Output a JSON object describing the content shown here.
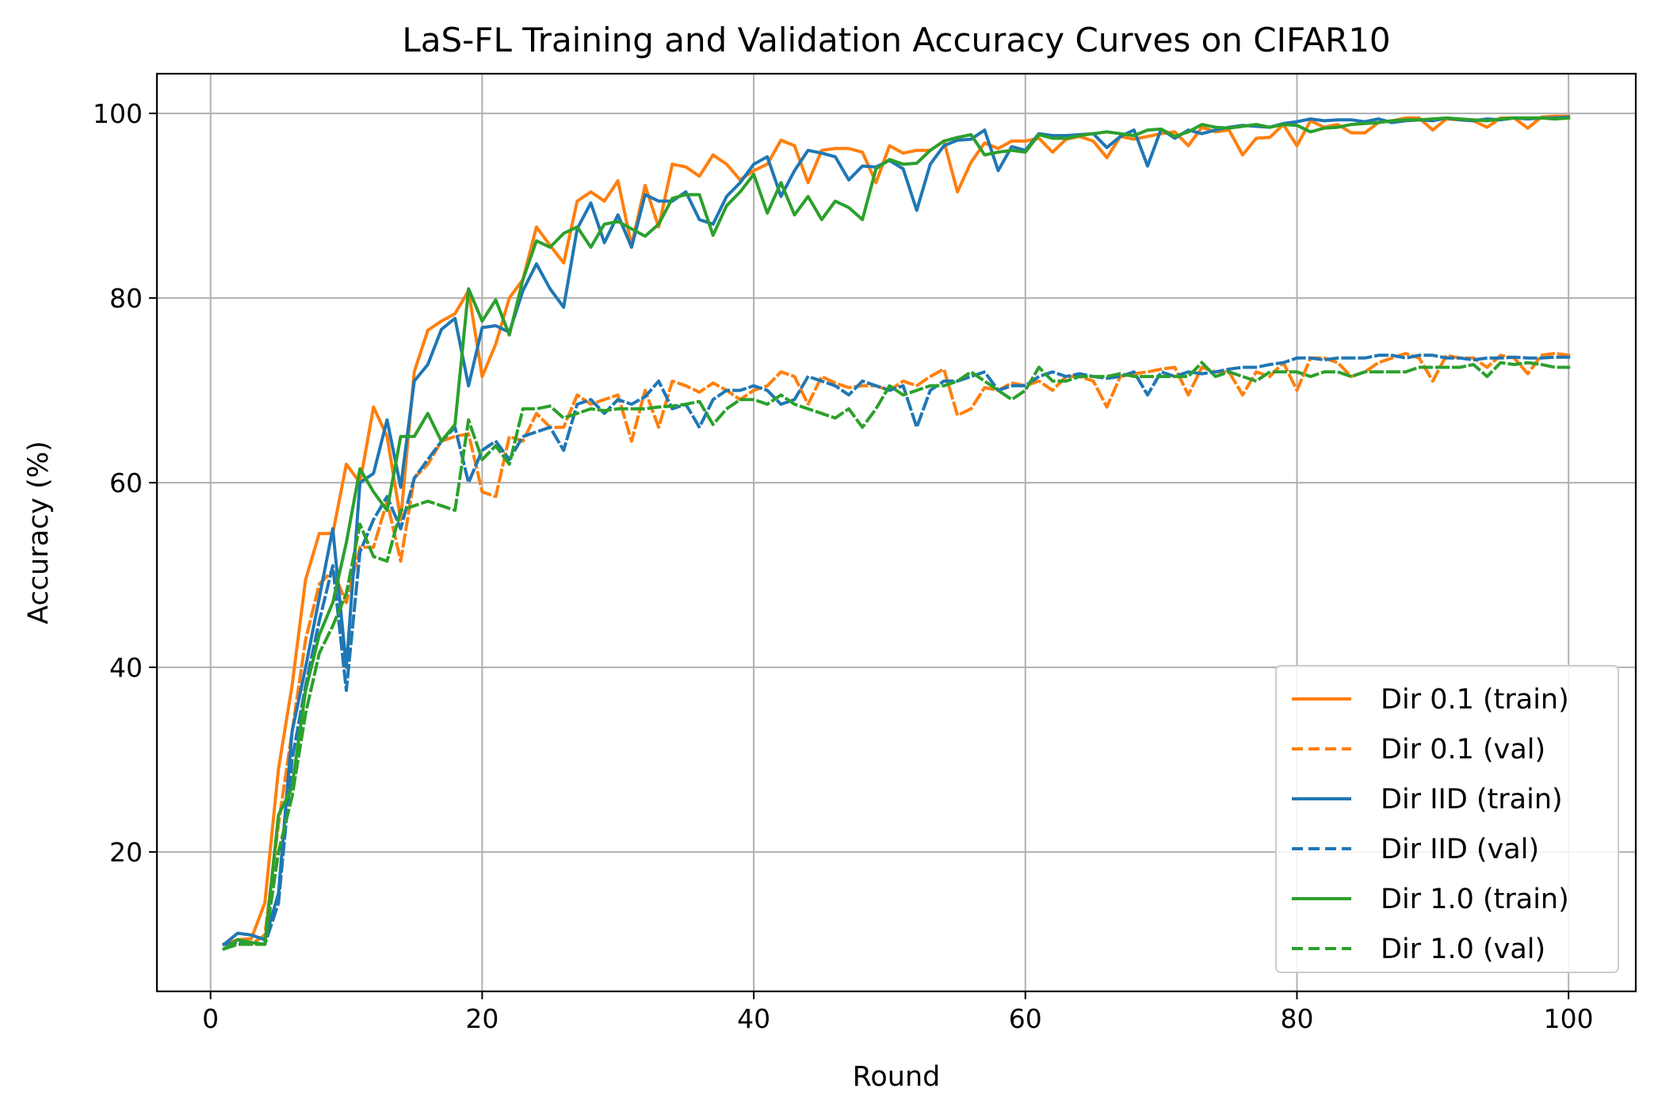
{
  "chart_data": {
    "type": "line",
    "title": "LaS-FL Training and Validation Accuracy Curves on CIFAR10",
    "xlabel": "Round",
    "ylabel": "Accuracy (%)",
    "xlim": [
      -3.95,
      104.95
    ],
    "ylim": [
      4.9,
      104.3
    ],
    "xticks": [
      0,
      20,
      40,
      60,
      80,
      100
    ],
    "yticks": [
      20,
      40,
      60,
      80,
      100
    ],
    "grid": true,
    "legend_position": "lower-right",
    "x": [
      1,
      2,
      3,
      4,
      5,
      6,
      7,
      8,
      9,
      10,
      11,
      12,
      13,
      14,
      15,
      16,
      17,
      18,
      19,
      20,
      21,
      22,
      23,
      24,
      25,
      26,
      27,
      28,
      29,
      30,
      31,
      32,
      33,
      34,
      35,
      36,
      37,
      38,
      39,
      40,
      41,
      42,
      43,
      44,
      45,
      46,
      47,
      48,
      49,
      50,
      51,
      52,
      53,
      54,
      55,
      56,
      57,
      58,
      59,
      60,
      61,
      62,
      63,
      64,
      65,
      66,
      67,
      68,
      69,
      70,
      71,
      72,
      73,
      74,
      75,
      76,
      77,
      78,
      79,
      80,
      81,
      82,
      83,
      84,
      85,
      86,
      87,
      88,
      89,
      90,
      91,
      92,
      93,
      94,
      95,
      96,
      97,
      98,
      99,
      100
    ],
    "series": [
      {
        "name": "Dir 0.1 (train)",
        "color": "#ff7f0e",
        "dash": "solid",
        "values": [
          10.0,
          10.5,
          10.6,
          14.5,
          29.0,
          38.0,
          49.5,
          54.5,
          54.5,
          62.0,
          60.0,
          68.2,
          65.0,
          56.0,
          72.0,
          76.5,
          77.5,
          78.3,
          80.8,
          71.5,
          75.0,
          80.0,
          82.0,
          87.7,
          85.7,
          83.8,
          90.5,
          91.5,
          90.5,
          92.7,
          85.7,
          92.2,
          87.7,
          94.5,
          94.2,
          93.2,
          95.5,
          94.5,
          92.8,
          93.8,
          94.5,
          97.1,
          96.5,
          92.5,
          96.0,
          96.2,
          96.2,
          95.8,
          92.5,
          96.5,
          95.7,
          96.0,
          96.0,
          97.0,
          91.5,
          94.7,
          96.8,
          96.2,
          97.0,
          97.0,
          97.3,
          95.8,
          97.2,
          97.5,
          97.0,
          95.2,
          97.5,
          97.2,
          97.5,
          97.8,
          98.0,
          96.5,
          98.5,
          98.0,
          98.2,
          95.5,
          97.3,
          97.4,
          98.8,
          96.5,
          99.2,
          98.5,
          98.8,
          97.9,
          97.9,
          99.0,
          99.2,
          99.5,
          99.5,
          98.2,
          99.4,
          99.3,
          99.2,
          98.5,
          99.5,
          99.5,
          98.4,
          99.6,
          99.7,
          99.7
        ]
      },
      {
        "name": "Dir 0.1 (val)",
        "color": "#ff7f0e",
        "dash": "dashed",
        "values": [
          10.0,
          10.2,
          10.0,
          11.0,
          23.0,
          33.0,
          43.0,
          49.0,
          50.5,
          47.0,
          53.0,
          53.0,
          58.0,
          51.5,
          60.5,
          62.0,
          64.5,
          65.0,
          65.3,
          59.0,
          58.5,
          65.0,
          64.5,
          67.5,
          66.0,
          66.0,
          69.5,
          68.5,
          69.0,
          69.5,
          64.5,
          70.0,
          66.0,
          71.0,
          70.5,
          69.8,
          70.8,
          70.0,
          69.0,
          70.0,
          70.5,
          72.0,
          71.5,
          68.5,
          71.5,
          70.8,
          70.3,
          70.5,
          70.5,
          70.0,
          71.0,
          70.5,
          71.5,
          72.3,
          67.3,
          68.0,
          70.3,
          70.0,
          70.8,
          70.5,
          71.0,
          70.0,
          71.5,
          71.5,
          71.0,
          68.2,
          71.5,
          71.8,
          72.0,
          72.3,
          72.5,
          69.5,
          72.5,
          72.0,
          72.0,
          69.5,
          72.0,
          71.5,
          73.0,
          70.0,
          73.5,
          73.5,
          73.0,
          71.5,
          72.0,
          73.0,
          73.5,
          74.0,
          73.5,
          71.0,
          73.8,
          73.5,
          73.5,
          72.5,
          73.8,
          73.5,
          71.8,
          73.8,
          74.0,
          73.8
        ]
      },
      {
        "name": "Dir IID (train)",
        "color": "#1f77b4",
        "dash": "solid",
        "values": [
          10.0,
          11.2,
          11.0,
          10.5,
          15.5,
          33.0,
          40.0,
          47.5,
          55.0,
          40.0,
          60.0,
          61.0,
          66.8,
          59.5,
          71.0,
          72.8,
          76.6,
          77.8,
          70.5,
          76.8,
          77.0,
          76.3,
          80.8,
          83.7,
          81.0,
          79.0,
          87.5,
          90.3,
          86.0,
          89.0,
          85.5,
          91.2,
          90.5,
          90.5,
          91.5,
          88.5,
          88.0,
          91.0,
          92.5,
          94.5,
          95.3,
          91.0,
          93.8,
          96.0,
          95.7,
          95.3,
          92.8,
          94.3,
          94.2,
          94.9,
          94.0,
          89.5,
          94.5,
          96.5,
          97.1,
          97.2,
          98.2,
          93.8,
          96.4,
          96.0,
          97.8,
          97.6,
          97.6,
          97.7,
          97.8,
          96.3,
          97.5,
          98.2,
          94.3,
          98.3,
          97.3,
          98.2,
          97.8,
          98.2,
          98.5,
          98.7,
          98.6,
          98.5,
          98.9,
          99.1,
          99.4,
          99.2,
          99.3,
          99.3,
          99.1,
          99.4,
          99.0,
          99.2,
          99.3,
          99.2,
          99.5,
          99.3,
          99.2,
          99.4,
          99.3,
          99.5,
          99.4,
          99.5,
          99.5,
          99.6
        ]
      },
      {
        "name": "Dir IID (val)",
        "color": "#1f77b4",
        "dash": "dashed",
        "values": [
          10.0,
          10.2,
          10.2,
          10.0,
          14.5,
          30.0,
          38.0,
          45.0,
          51.0,
          37.5,
          52.5,
          56.0,
          58.5,
          55.0,
          60.5,
          62.5,
          64.5,
          66.0,
          60.0,
          63.5,
          64.5,
          62.5,
          65.0,
          65.5,
          66.0,
          63.5,
          68.5,
          69.0,
          67.5,
          69.0,
          68.5,
          69.3,
          71.0,
          68.0,
          68.5,
          66.0,
          69.0,
          70.0,
          70.0,
          70.5,
          70.0,
          68.5,
          69.0,
          71.5,
          71.0,
          70.5,
          69.5,
          71.0,
          70.5,
          70.0,
          70.5,
          66.0,
          70.0,
          71.0,
          71.0,
          71.5,
          72.0,
          70.0,
          70.5,
          70.5,
          71.5,
          72.0,
          71.5,
          71.8,
          71.5,
          71.3,
          71.5,
          72.0,
          69.5,
          72.0,
          71.5,
          72.0,
          71.8,
          72.0,
          72.3,
          72.5,
          72.5,
          72.8,
          73.0,
          73.5,
          73.5,
          73.3,
          73.5,
          73.5,
          73.5,
          73.8,
          73.8,
          73.5,
          73.8,
          73.8,
          73.5,
          73.5,
          73.3,
          73.5,
          73.5,
          73.6,
          73.5,
          73.5,
          73.6,
          73.6
        ]
      },
      {
        "name": "Dir 1.0 (train)",
        "color": "#2ca02c",
        "dash": "solid",
        "values": [
          9.5,
          10.5,
          10.2,
          10.0,
          24.0,
          27.0,
          37.5,
          43.5,
          47.0,
          53.5,
          61.5,
          59.0,
          57.0,
          65.0,
          65.0,
          67.5,
          64.5,
          66.3,
          81.0,
          77.5,
          79.8,
          76.0,
          82.0,
          86.2,
          85.5,
          87.0,
          87.7,
          85.5,
          88.0,
          88.3,
          87.5,
          86.7,
          88.0,
          90.8,
          91.2,
          91.2,
          86.8,
          90.0,
          91.5,
          93.4,
          89.2,
          92.5,
          89.0,
          91.0,
          88.5,
          90.5,
          89.8,
          88.5,
          94.0,
          95.0,
          94.5,
          94.6,
          96.0,
          97.0,
          97.4,
          97.7,
          95.5,
          95.8,
          96.0,
          95.8,
          97.7,
          97.3,
          97.3,
          97.6,
          97.8,
          98.0,
          97.8,
          97.6,
          98.2,
          98.3,
          97.5,
          98.0,
          98.8,
          98.5,
          98.4,
          98.6,
          98.8,
          98.5,
          98.8,
          98.7,
          98.0,
          98.4,
          98.5,
          98.8,
          98.9,
          99.0,
          99.2,
          99.3,
          99.3,
          99.4,
          99.5,
          99.4,
          99.3,
          99.2,
          99.4,
          99.5,
          99.5,
          99.5,
          99.4,
          99.5
        ]
      },
      {
        "name": "Dir 1.0 (val)",
        "color": "#2ca02c",
        "dash": "dashed",
        "values": [
          9.5,
          10.0,
          10.0,
          10.0,
          20.0,
          26.0,
          35.0,
          41.5,
          44.5,
          48.0,
          55.5,
          52.0,
          51.5,
          57.0,
          57.5,
          58.0,
          57.5,
          57.0,
          66.8,
          62.5,
          64.0,
          62.0,
          68.0,
          68.0,
          68.3,
          67.0,
          67.5,
          68.0,
          67.8,
          68.0,
          68.0,
          68.0,
          68.2,
          68.3,
          68.5,
          68.8,
          66.3,
          68.0,
          69.0,
          69.0,
          68.5,
          69.5,
          68.5,
          68.0,
          67.5,
          67.0,
          68.0,
          66.0,
          68.0,
          70.5,
          69.5,
          70.0,
          70.5,
          70.5,
          71.0,
          72.0,
          71.0,
          70.0,
          69.0,
          70.0,
          72.5,
          71.0,
          71.0,
          71.5,
          71.5,
          71.5,
          71.8,
          71.5,
          71.5,
          71.5,
          71.5,
          71.5,
          73.0,
          71.5,
          72.0,
          71.5,
          71.0,
          72.0,
          72.0,
          72.0,
          71.5,
          72.0,
          72.0,
          71.5,
          72.0,
          72.0,
          72.0,
          72.0,
          72.5,
          72.5,
          72.5,
          72.5,
          72.8,
          71.5,
          73.0,
          72.8,
          73.0,
          72.8,
          72.5,
          72.5
        ]
      }
    ]
  }
}
